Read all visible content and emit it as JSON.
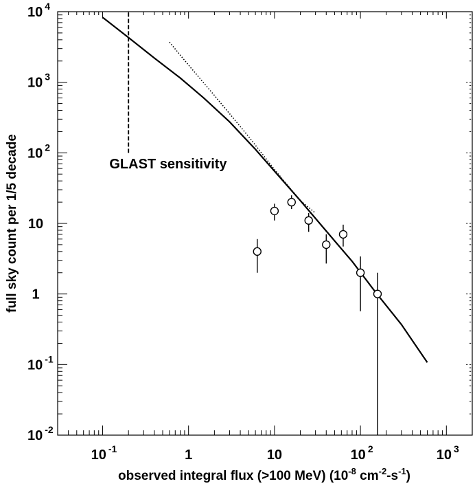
{
  "chart_data": {
    "type": "scatter",
    "xlabel": "observed integral flux (>100 MeV) (10",
    "xlabel_sup1": "-8",
    "xlabel_mid": " cm",
    "xlabel_sup2": "-2",
    "xlabel_mid2": "-s",
    "xlabel_sup3": "-1",
    "xlabel_end": ")",
    "ylabel": "full sky count per 1/5 decade",
    "x_scale": "log",
    "y_scale": "log",
    "xlim": [
      0.03,
      2000
    ],
    "ylim": [
      0.01,
      10000
    ],
    "grid": false,
    "x_ticks": [
      {
        "value": 0.1,
        "base": "10",
        "exp": "-1"
      },
      {
        "value": 1,
        "base": "1",
        "exp": ""
      },
      {
        "value": 10,
        "base": "10",
        "exp": ""
      },
      {
        "value": 100,
        "base": "10",
        "exp": "2"
      },
      {
        "value": 1000,
        "base": "10",
        "exp": "3"
      }
    ],
    "y_ticks": [
      {
        "value": 10000,
        "base": "10",
        "exp": "4"
      },
      {
        "value": 1000,
        "base": "10",
        "exp": "3"
      },
      {
        "value": 100,
        "base": "10",
        "exp": "2"
      },
      {
        "value": 10,
        "base": "10",
        "exp": ""
      },
      {
        "value": 1,
        "base": "1",
        "exp": ""
      },
      {
        "value": 0.1,
        "base": "10",
        "exp": "-1"
      },
      {
        "value": 0.01,
        "base": "10",
        "exp": "-2"
      }
    ],
    "annotations": [
      {
        "text": "GLAST sensitivity",
        "x": 0.12,
        "y": 60
      }
    ],
    "sensitivity_line": {
      "x": 0.2,
      "y_from": 100,
      "y_to": 10000
    },
    "model_curve": {
      "x": [
        0.1,
        0.2,
        0.4,
        0.8,
        1.5,
        3,
        6,
        10,
        20,
        40,
        80,
        150,
        300,
        600
      ],
      "y": [
        8300,
        4300,
        2200,
        1150,
        600,
        275,
        112,
        55,
        21,
        7.8,
        2.9,
        1.06,
        0.37,
        0.107
      ]
    },
    "dotted_curve": {
      "x": [
        0.6,
        1,
        2,
        5,
        10,
        20,
        30
      ],
      "y": [
        3700,
        1750,
        650,
        170,
        58,
        21,
        14
      ]
    },
    "series": [
      {
        "points": [
          {
            "x": 6.3,
            "y": 4,
            "y_low": 2,
            "y_high": 6
          },
          {
            "x": 10,
            "y": 15,
            "y_low": 11,
            "y_high": 19
          },
          {
            "x": 15.8,
            "y": 20,
            "y_low": 16,
            "y_high": 25
          },
          {
            "x": 25,
            "y": 11,
            "y_low": 7.6,
            "y_high": 14
          },
          {
            "x": 40,
            "y": 5,
            "y_low": 2.7,
            "y_high": 7
          },
          {
            "x": 63,
            "y": 7,
            "y_low": 4.7,
            "y_high": 9.6
          },
          {
            "x": 100,
            "y": 2,
            "y_low": 0.57,
            "y_high": 3.4
          },
          {
            "x": 158,
            "y": 1,
            "y_low": 0.01,
            "y_high": 2
          }
        ]
      }
    ]
  }
}
